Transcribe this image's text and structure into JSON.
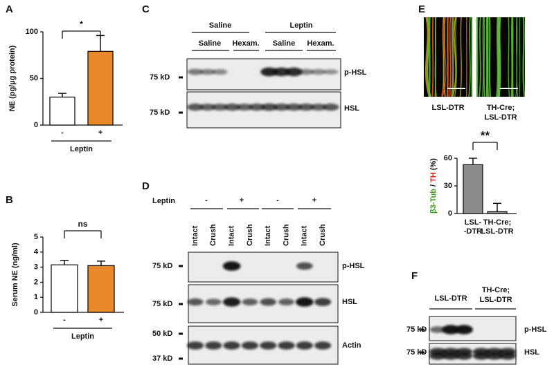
{
  "chart_data": [
    {
      "type": "bar",
      "panel": "A",
      "ylabel": "NE (pg/µg protein)",
      "xlabel": "Leptin",
      "categories": [
        "-",
        "+"
      ],
      "values": [
        30,
        79
      ],
      "errors": [
        4,
        17
      ],
      "colors": [
        "#ffffff",
        "#e8892c"
      ],
      "ylim": [
        0,
        100
      ],
      "yticks": [
        0,
        50,
        100
      ],
      "annotation": "*"
    },
    {
      "type": "bar",
      "panel": "B",
      "ylabel": "Serum NE (ng/ml)",
      "xlabel": "Leptin",
      "categories": [
        "-",
        "+"
      ],
      "values": [
        3.15,
        3.1
      ],
      "errors": [
        0.3,
        0.3
      ],
      "colors": [
        "#ffffff",
        "#e8892c"
      ],
      "ylim": [
        0,
        5
      ],
      "yticks": [
        0,
        1,
        2,
        3,
        4,
        5
      ],
      "annotation": "ns"
    },
    {
      "type": "bar",
      "panel": "E",
      "ylabel_parts": [
        {
          "text": "β3-Tub",
          "color": "#3d9a1c"
        },
        {
          "text": " / ",
          "color": "#111111"
        },
        {
          "text": "TH",
          "color": "#d8261c"
        },
        {
          "text": " (%)",
          "color": "#111111"
        }
      ],
      "categories": [
        [
          "LSL-",
          "-DTR"
        ],
        [
          "TH-Cre;",
          "LSL-DTR"
        ]
      ],
      "values": [
        53,
        2
      ],
      "errors": [
        7,
        9
      ],
      "color": "#8c8c8c",
      "ylim": [
        0,
        60
      ],
      "yticks": [
        0,
        30,
        60
      ],
      "annotation": "**"
    }
  ],
  "blot_c": {
    "label": "C",
    "groups": [
      "Saline",
      "Leptin"
    ],
    "subgroups": [
      "Saline",
      "Hexam.",
      "Saline",
      "Hexam."
    ],
    "rows": [
      {
        "markers": [
          "75 kD"
        ],
        "name": "p-HSL"
      },
      {
        "markers": [
          "75 kD"
        ],
        "name": "HSL"
      }
    ]
  },
  "blot_d": {
    "label": "D",
    "treatment": "Leptin",
    "signs": [
      "-",
      "+",
      "-",
      "+"
    ],
    "lanes": [
      "Intact",
      "Crush",
      "Intact",
      "Crush",
      "Intact",
      "Crush",
      "Intact",
      "Crush"
    ],
    "rows": [
      {
        "markers": [
          "75 kD"
        ],
        "name": "p-HSL"
      },
      {
        "markers": [
          "75 kD"
        ],
        "name": "HSL"
      },
      {
        "markers": [
          "50 kD",
          "37 kD"
        ],
        "name": "Actin"
      }
    ]
  },
  "images_e": {
    "captions": [
      [
        "LSL-DTR"
      ],
      [
        "TH-Cre;",
        "LSL-DTR"
      ]
    ]
  },
  "blot_f": {
    "label": "F",
    "groups": [
      [
        "LSL-DTR"
      ],
      [
        "TH-Cre;",
        "LSL-DTR"
      ]
    ],
    "rows": [
      {
        "markers": [
          "75 kD"
        ],
        "name": "p-HSL"
      },
      {
        "markers": [
          "75 kD"
        ],
        "name": "HSL"
      }
    ]
  }
}
